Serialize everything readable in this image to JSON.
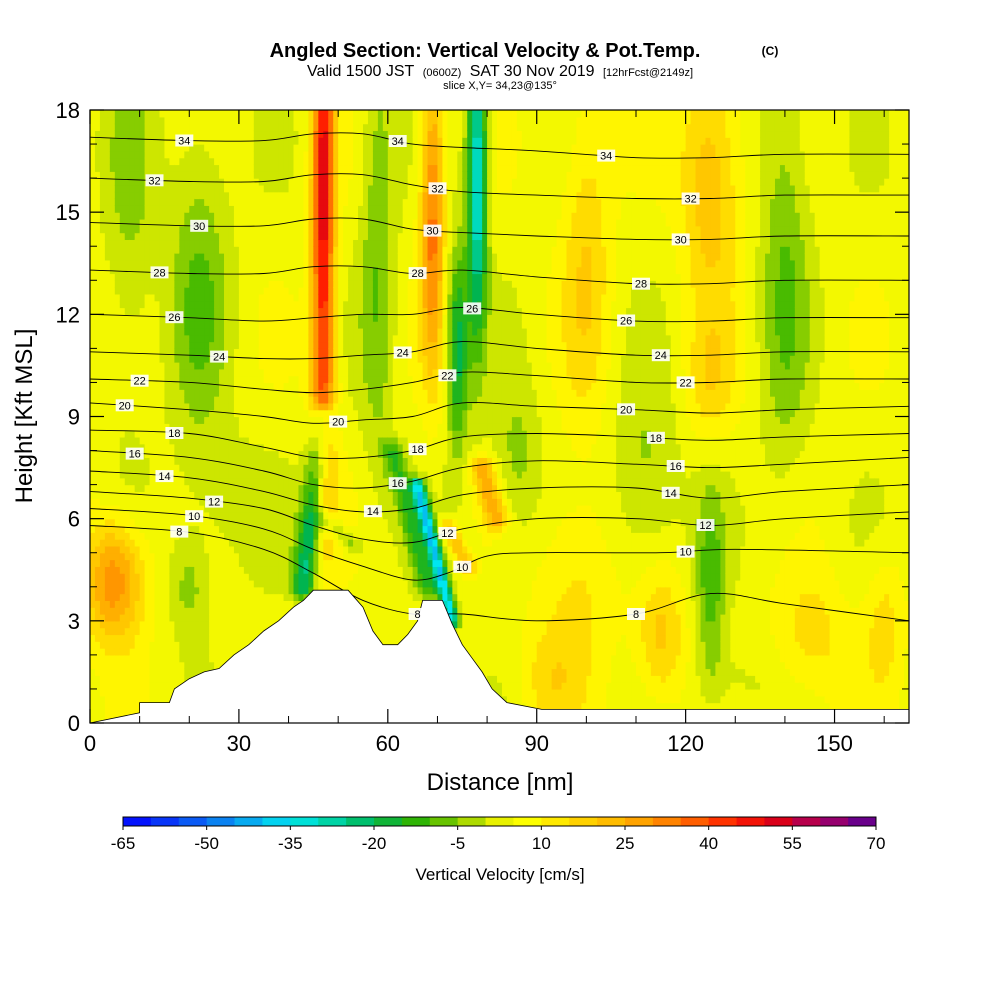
{
  "header": {
    "title": "Angled Section: Vertical Velocity & Pot.Temp.",
    "title_tag": "(C)",
    "valid_line": "Valid 1500 JST",
    "valid_utc": "(0600Z)",
    "valid_date": "SAT 30 Nov 2019",
    "forecast": "[12hrFcst@2149z]",
    "slice": "slice X,Y= 34,23@135°"
  },
  "chart_data": {
    "type": "heatmap",
    "xlabel": "Distance [nm]",
    "ylabel": "Height [Kft MSL]",
    "xlim": [
      0,
      165
    ],
    "ylim": [
      0,
      18
    ],
    "x_ticks": [
      "0",
      "30",
      "60",
      "90",
      "120",
      "150"
    ],
    "y_ticks": [
      "0",
      "3",
      "6",
      "9",
      "12",
      "15",
      "18"
    ],
    "colorbar": {
      "label": "Vertical Velocity [cm/s]",
      "min": -65,
      "max": 70,
      "step": 5,
      "tick_labels": [
        "-65",
        "-50",
        "-35",
        "-20",
        "-5",
        "10",
        "25",
        "40",
        "55",
        "70"
      ]
    },
    "terrain": [
      [
        0,
        0
      ],
      [
        10,
        0.3
      ],
      [
        10,
        0.6
      ],
      [
        16,
        0.6
      ],
      [
        17,
        1.0
      ],
      [
        20,
        1.3
      ],
      [
        23,
        1.5
      ],
      [
        26,
        1.6
      ],
      [
        29,
        2.0
      ],
      [
        32,
        2.3
      ],
      [
        35,
        2.7
      ],
      [
        38,
        3.0
      ],
      [
        41,
        3.4
      ],
      [
        43,
        3.6
      ],
      [
        45,
        3.9
      ],
      [
        52,
        3.9
      ],
      [
        55,
        3.4
      ],
      [
        57,
        2.7
      ],
      [
        59,
        2.3
      ],
      [
        62,
        2.3
      ],
      [
        64,
        2.6
      ],
      [
        66,
        3.0
      ],
      [
        67,
        3.6
      ],
      [
        71,
        3.6
      ],
      [
        73,
        2.9
      ],
      [
        75,
        2.3
      ],
      [
        77,
        1.9
      ],
      [
        79,
        1.5
      ],
      [
        81,
        1.0
      ],
      [
        84,
        0.6
      ],
      [
        91,
        0.4
      ],
      [
        165,
        0.4
      ]
    ],
    "velocity_features": [
      {
        "x": 47,
        "y": 16,
        "value": 45,
        "sx": 2.2,
        "sy": 6
      },
      {
        "x": 47,
        "y": 9,
        "value": 20,
        "sx": 2.8,
        "sy": 4
      },
      {
        "x": 69,
        "y": 15,
        "value": 30,
        "sx": 2.4,
        "sy": 4.5
      },
      {
        "x": 78,
        "y": 16,
        "value": -40,
        "sx": 2.0,
        "sy": 4.5
      },
      {
        "x": 74,
        "y": 11,
        "value": -25,
        "sx": 2.2,
        "sy": 3
      },
      {
        "x": 58,
        "y": 14,
        "value": -12,
        "sx": 3.5,
        "sy": 7
      },
      {
        "x": 22,
        "y": 13,
        "value": -12,
        "sx": 6,
        "sy": 5
      },
      {
        "x": 8,
        "y": 15,
        "value": -8,
        "sx": 5,
        "sy": 6
      },
      {
        "x": 125,
        "y": 16,
        "value": 18,
        "sx": 6,
        "sy": 3.5
      },
      {
        "x": 100,
        "y": 14,
        "value": 12,
        "sx": 5,
        "sy": 5
      },
      {
        "x": 140,
        "y": 14,
        "value": -12,
        "sx": 5,
        "sy": 7
      },
      {
        "x": 125,
        "y": 10,
        "value": 10,
        "sx": 5,
        "sy": 2
      },
      {
        "x": 112,
        "y": 7,
        "value": -10,
        "sx": 7,
        "sy": 3
      },
      {
        "x": 5,
        "y": 4.2,
        "value": 28,
        "sx": 6,
        "sy": 1.8
      },
      {
        "x": 20,
        "y": 4.0,
        "value": -10,
        "sx": 4,
        "sy": 1.5
      },
      {
        "x": 28,
        "y": 6.5,
        "value": -5,
        "sx": 10,
        "sy": 2
      },
      {
        "x": 86,
        "y": 7.5,
        "value": -10,
        "sx": 5,
        "sy": 2.5
      },
      {
        "x": 98,
        "y": 4,
        "value": 10,
        "sx": 8,
        "sy": 3
      },
      {
        "x": 115,
        "y": 2.5,
        "value": 15,
        "sx": 5,
        "sy": 2
      },
      {
        "x": 125,
        "y": 4,
        "value": -14,
        "sx": 3,
        "sy": 3
      },
      {
        "x": 145,
        "y": 2.5,
        "value": 10,
        "sx": 8,
        "sy": 2
      },
      {
        "x": 160,
        "y": 3,
        "value": 10,
        "sx": 4,
        "sy": 2
      },
      {
        "x": 92,
        "y": 1.2,
        "value": 8,
        "sx": 6,
        "sy": 1.5
      },
      {
        "x": 130,
        "y": 1.2,
        "value": -5,
        "sx": 8,
        "sy": 1.2
      }
    ],
    "shear_bands": [
      {
        "x0": 43,
        "y0": 4,
        "x1": 47,
        "y1": 9,
        "value": -28,
        "width": 2.4
      },
      {
        "x0": 47,
        "y0": 6,
        "x1": 53,
        "y1": 5.2,
        "value": -12,
        "width": 1.8
      },
      {
        "x0": 68,
        "y0": 4,
        "x1": 61,
        "y1": 8,
        "value": -16,
        "width": 2.2
      },
      {
        "x0": 73,
        "y0": 3,
        "x1": 66,
        "y1": 7,
        "value": -40,
        "width": 1.4
      },
      {
        "x0": 82,
        "y0": 6,
        "x1": 79,
        "y1": 7.5,
        "value": 20,
        "width": 2.5
      },
      {
        "x0": 76,
        "y0": 4.6,
        "x1": 72,
        "y1": 5.8,
        "value": 18,
        "width": 1.6
      }
    ],
    "isentropes": [
      {
        "label": "8",
        "points": [
          [
            0,
            5.8
          ],
          [
            20,
            5.6
          ],
          [
            35,
            5.1
          ],
          [
            45,
            4.4
          ],
          [
            55,
            3.6
          ],
          [
            65,
            3.2
          ],
          [
            75,
            3.2
          ],
          [
            90,
            3.0
          ],
          [
            110,
            3.2
          ],
          [
            125,
            3.8
          ],
          [
            140,
            3.5
          ],
          [
            165,
            3.0
          ]
        ]
      },
      {
        "label": "10",
        "points": [
          [
            0,
            6.3
          ],
          [
            20,
            6.1
          ],
          [
            35,
            5.7
          ],
          [
            45,
            5.1
          ],
          [
            55,
            4.6
          ],
          [
            65,
            4.2
          ],
          [
            72,
            4.4
          ],
          [
            80,
            4.9
          ],
          [
            90,
            5.0
          ],
          [
            115,
            5.0
          ],
          [
            130,
            5.1
          ],
          [
            165,
            5.0
          ]
        ]
      },
      {
        "label": "12",
        "points": [
          [
            0,
            6.8
          ],
          [
            20,
            6.6
          ],
          [
            35,
            6.3
          ],
          [
            45,
            5.8
          ],
          [
            55,
            5.4
          ],
          [
            65,
            5.3
          ],
          [
            75,
            5.7
          ],
          [
            90,
            6.0
          ],
          [
            110,
            6.0
          ],
          [
            125,
            5.8
          ],
          [
            140,
            6.0
          ],
          [
            165,
            6.2
          ]
        ]
      },
      {
        "label": "14",
        "points": [
          [
            0,
            7.4
          ],
          [
            20,
            7.2
          ],
          [
            35,
            6.8
          ],
          [
            45,
            6.4
          ],
          [
            55,
            6.2
          ],
          [
            65,
            6.3
          ],
          [
            75,
            6.7
          ],
          [
            90,
            6.9
          ],
          [
            110,
            6.9
          ],
          [
            125,
            6.6
          ],
          [
            140,
            6.8
          ],
          [
            165,
            7.0
          ]
        ]
      },
      {
        "label": "16",
        "points": [
          [
            0,
            8.0
          ],
          [
            20,
            7.8
          ],
          [
            35,
            7.4
          ],
          [
            45,
            7.0
          ],
          [
            55,
            6.9
          ],
          [
            65,
            7.1
          ],
          [
            75,
            7.5
          ],
          [
            90,
            7.7
          ],
          [
            110,
            7.6
          ],
          [
            125,
            7.5
          ],
          [
            140,
            7.6
          ],
          [
            165,
            7.8
          ]
        ]
      },
      {
        "label": "18",
        "points": [
          [
            0,
            8.6
          ],
          [
            20,
            8.5
          ],
          [
            35,
            8.1
          ],
          [
            45,
            7.8
          ],
          [
            55,
            7.8
          ],
          [
            65,
            8.0
          ],
          [
            75,
            8.4
          ],
          [
            90,
            8.5
          ],
          [
            110,
            8.4
          ],
          [
            125,
            8.3
          ],
          [
            140,
            8.4
          ],
          [
            165,
            8.5
          ]
        ]
      },
      {
        "label": "20",
        "points": [
          [
            0,
            9.4
          ],
          [
            20,
            9.2
          ],
          [
            35,
            9.0
          ],
          [
            45,
            8.8
          ],
          [
            55,
            8.9
          ],
          [
            65,
            9.0
          ],
          [
            75,
            9.4
          ],
          [
            90,
            9.3
          ],
          [
            110,
            9.2
          ],
          [
            125,
            9.1
          ],
          [
            140,
            9.2
          ],
          [
            165,
            9.3
          ]
        ]
      },
      {
        "label": "22",
        "points": [
          [
            0,
            10.1
          ],
          [
            20,
            10.0
          ],
          [
            35,
            9.8
          ],
          [
            45,
            9.7
          ],
          [
            55,
            9.8
          ],
          [
            65,
            10.0
          ],
          [
            75,
            10.3
          ],
          [
            90,
            10.2
          ],
          [
            110,
            10.0
          ],
          [
            125,
            10.0
          ],
          [
            140,
            10.1
          ],
          [
            165,
            10.1
          ]
        ]
      },
      {
        "label": "24",
        "points": [
          [
            0,
            10.9
          ],
          [
            20,
            10.8
          ],
          [
            35,
            10.7
          ],
          [
            45,
            10.7
          ],
          [
            55,
            10.8
          ],
          [
            65,
            10.9
          ],
          [
            75,
            11.2
          ],
          [
            90,
            11.0
          ],
          [
            110,
            10.8
          ],
          [
            125,
            10.8
          ],
          [
            140,
            10.9
          ],
          [
            165,
            10.9
          ]
        ]
      },
      {
        "label": "26",
        "points": [
          [
            0,
            12.0
          ],
          [
            20,
            11.9
          ],
          [
            35,
            11.8
          ],
          [
            45,
            11.9
          ],
          [
            55,
            12.0
          ],
          [
            65,
            12.0
          ],
          [
            75,
            12.2
          ],
          [
            90,
            12.0
          ],
          [
            110,
            11.8
          ],
          [
            125,
            11.8
          ],
          [
            140,
            11.9
          ],
          [
            165,
            11.9
          ]
        ]
      },
      {
        "label": "28",
        "points": [
          [
            0,
            13.3
          ],
          [
            20,
            13.2
          ],
          [
            35,
            13.2
          ],
          [
            45,
            13.4
          ],
          [
            55,
            13.4
          ],
          [
            65,
            13.2
          ],
          [
            75,
            13.3
          ],
          [
            90,
            13.1
          ],
          [
            110,
            12.9
          ],
          [
            125,
            12.9
          ],
          [
            140,
            13.0
          ],
          [
            165,
            13.0
          ]
        ]
      },
      {
        "label": "30",
        "points": [
          [
            0,
            14.7
          ],
          [
            20,
            14.6
          ],
          [
            35,
            14.6
          ],
          [
            45,
            14.8
          ],
          [
            55,
            14.8
          ],
          [
            65,
            14.5
          ],
          [
            75,
            14.4
          ],
          [
            90,
            14.3
          ],
          [
            110,
            14.2
          ],
          [
            125,
            14.2
          ],
          [
            140,
            14.3
          ],
          [
            165,
            14.3
          ]
        ]
      },
      {
        "label": "32",
        "points": [
          [
            0,
            16.0
          ],
          [
            20,
            15.9
          ],
          [
            35,
            15.9
          ],
          [
            45,
            16.1
          ],
          [
            55,
            16.1
          ],
          [
            65,
            15.8
          ],
          [
            75,
            15.6
          ],
          [
            90,
            15.5
          ],
          [
            110,
            15.4
          ],
          [
            125,
            15.4
          ],
          [
            140,
            15.5
          ],
          [
            165,
            15.5
          ]
        ]
      },
      {
        "label": "34",
        "points": [
          [
            0,
            17.2
          ],
          [
            20,
            17.1
          ],
          [
            35,
            17.1
          ],
          [
            45,
            17.3
          ],
          [
            55,
            17.3
          ],
          [
            65,
            17.0
          ],
          [
            75,
            16.9
          ],
          [
            90,
            16.8
          ],
          [
            110,
            16.6
          ],
          [
            125,
            16.6
          ],
          [
            140,
            16.7
          ],
          [
            165,
            16.7
          ]
        ]
      }
    ]
  }
}
